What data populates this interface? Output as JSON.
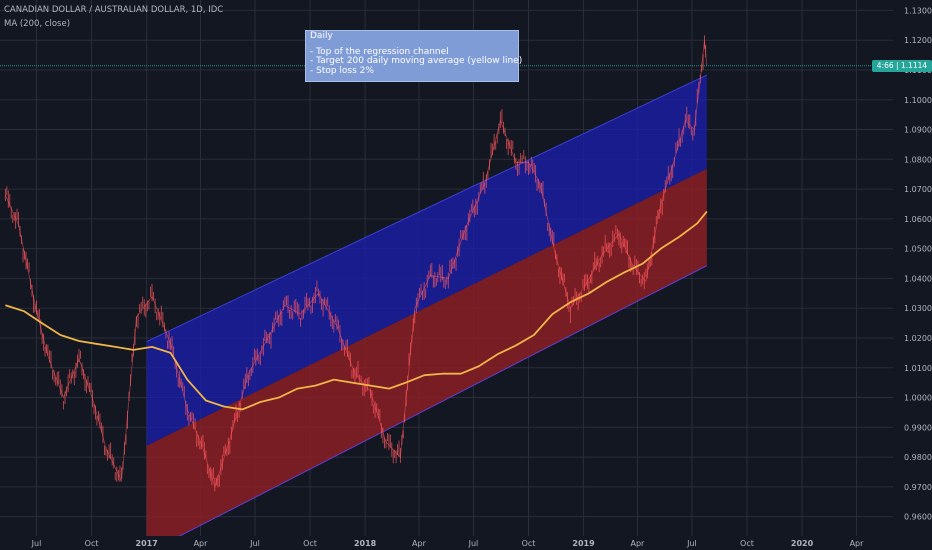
{
  "header": {
    "title": "CANADIAN DOLLAR / AUSTRALIAN DOLLAR, 1D, IDC",
    "indicator": "MA (200, close)"
  },
  "annotation": {
    "heading": "Daily",
    "lines": [
      "- Top of the regression channel",
      "- Target 200 daily moving average (yellow line)",
      "- Stop loss 2%"
    ]
  },
  "price_tag": {
    "countdown": "4:66",
    "price": "1.1114",
    "color": "#26a69a"
  },
  "colors": {
    "background": "#131722",
    "upper_channel": "#1a1ea8",
    "lower_channel": "#8b1e24",
    "moving_average": "#f0b449",
    "candles": "#ff5a5f",
    "grid": "#2a2e39"
  },
  "chart_data": {
    "type": "line",
    "title": "CANADIAN DOLLAR / AUSTRALIAN DOLLAR, 1D, IDC",
    "xlabel": "",
    "ylabel": "",
    "ylim": [
      0.9535,
      1.1335
    ],
    "grid": true,
    "y_ticks": [
      "1.1300",
      "1.1200",
      "1.1100",
      "1.1000",
      "1.0900",
      "1.0800",
      "1.0700",
      "1.0600",
      "1.0500",
      "1.0400",
      "1.0300",
      "1.0200",
      "1.0100",
      "1.0000",
      "0.9900",
      "0.9800",
      "0.9700",
      "0.9600"
    ],
    "x_ticks": [
      "Jul",
      "Oct",
      "2017",
      "Apr",
      "Jul",
      "Oct",
      "2018",
      "Apr",
      "Jul",
      "Oct",
      "2019",
      "Apr",
      "Jul",
      "Oct",
      "2020",
      "Apr"
    ],
    "x_range": [
      "2016-05",
      "2020-06"
    ],
    "series": [
      {
        "kind": "price",
        "x": [
          "2016-05-10",
          "2016-06-01",
          "2016-07-01",
          "2016-07-20",
          "2016-08-15",
          "2016-09-10",
          "2016-10-05",
          "2016-10-25",
          "2016-11-20",
          "2016-12-15",
          "2017-01-10",
          "2017-02-10",
          "2017-03-10",
          "2017-04-05",
          "2017-04-25",
          "2017-05-20",
          "2017-06-20",
          "2017-07-20",
          "2017-08-20",
          "2017-09-15",
          "2017-10-15",
          "2017-11-15",
          "2017-12-15",
          "2018-01-10",
          "2018-02-05",
          "2018-03-01",
          "2018-03-25",
          "2018-04-20",
          "2018-05-20",
          "2018-06-20",
          "2018-07-20",
          "2018-08-15",
          "2018-09-10",
          "2018-10-01",
          "2018-10-20",
          "2018-11-15",
          "2018-12-10",
          "2019-01-05",
          "2019-02-01",
          "2019-03-01",
          "2019-03-25",
          "2019-04-15",
          "2019-05-10",
          "2019-05-30",
          "2019-06-20",
          "2019-07-05",
          "2019-07-15",
          "2019-07-22",
          "2019-07-26"
        ],
        "values": [
          1.068,
          1.058,
          1.029,
          1.014,
          1.0,
          1.013,
          0.998,
          0.983,
          0.972,
          1.027,
          1.034,
          1.018,
          0.996,
          0.983,
          0.97,
          0.986,
          1.008,
          1.019,
          1.031,
          1.028,
          1.035,
          1.024,
          1.008,
          1.002,
          0.985,
          0.98,
          1.03,
          1.041,
          1.04,
          1.058,
          1.072,
          1.093,
          1.079,
          1.079,
          1.072,
          1.048,
          1.03,
          1.038,
          1.048,
          1.055,
          1.044,
          1.039,
          1.065,
          1.078,
          1.093,
          1.09,
          1.107,
          1.12,
          1.1114
        ]
      },
      {
        "kind": "moving-average",
        "x": [
          "2016-05-10",
          "2016-06-10",
          "2016-07-10",
          "2016-08-10",
          "2016-09-10",
          "2016-10-10",
          "2016-11-10",
          "2016-12-10",
          "2017-01-10",
          "2017-02-10",
          "2017-03-10",
          "2017-04-10",
          "2017-05-10",
          "2017-06-10",
          "2017-07-10",
          "2017-08-10",
          "2017-09-10",
          "2017-10-10",
          "2017-11-10",
          "2017-12-10",
          "2018-01-10",
          "2018-02-10",
          "2018-03-10",
          "2018-04-10",
          "2018-05-10",
          "2018-06-10",
          "2018-07-10",
          "2018-08-10",
          "2018-09-10",
          "2018-10-10",
          "2018-11-10",
          "2018-12-10",
          "2019-01-10",
          "2019-02-10",
          "2019-03-10",
          "2019-04-10",
          "2019-05-10",
          "2019-06-10",
          "2019-07-10",
          "2019-07-26"
        ],
        "values": [
          1.031,
          1.029,
          1.025,
          1.021,
          1.019,
          1.018,
          1.017,
          1.016,
          1.017,
          1.015,
          1.006,
          0.999,
          0.997,
          0.996,
          0.9985,
          1.0,
          1.003,
          1.004,
          1.006,
          1.005,
          1.004,
          1.003,
          1.005,
          1.0075,
          1.008,
          1.008,
          1.0105,
          1.0145,
          1.0175,
          1.021,
          1.028,
          1.032,
          1.035,
          1.039,
          1.042,
          1.045,
          1.05,
          1.054,
          1.0585,
          1.0625
        ]
      }
    ],
    "regression_channel": {
      "start": "2017-01-01",
      "end": "2019-07-26",
      "upper": [
        1.0188,
        1.1083
      ],
      "middle": [
        0.9838,
        1.0768
      ],
      "lower": [
        0.9478,
        1.0443
      ]
    }
  }
}
